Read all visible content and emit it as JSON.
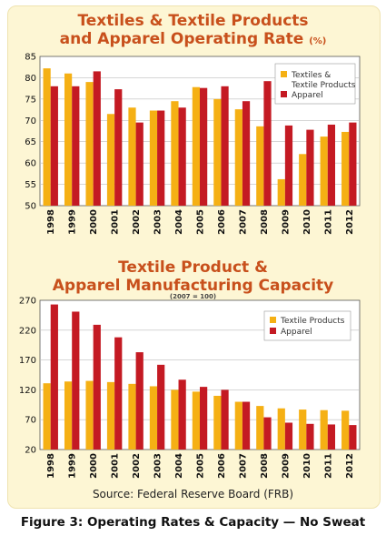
{
  "page": {
    "source": "Source: Federal Reserve Board (FRB)",
    "caption": "Figure 3: Operating Rates & Capacity — No Sweat"
  },
  "colors": {
    "textiles": "#f5b014",
    "apparel": "#c41a23",
    "title": "#c8501c",
    "panel": "#fdf6d4"
  },
  "chart_data": [
    {
      "type": "bar",
      "title_line1": "Textiles & Textile Products",
      "title_line2": "and Apparel Operating Rate",
      "title_unit": "(%)",
      "categories": [
        "1998",
        "1999",
        "2000",
        "2001",
        "2002",
        "2003",
        "2004",
        "2005",
        "2006",
        "2007",
        "2008",
        "2009",
        "2010",
        "2011",
        "2012"
      ],
      "series": [
        {
          "name": "Textiles & Textile Products",
          "values": [
            82.2,
            81.0,
            79.0,
            71.5,
            73.0,
            72.3,
            74.5,
            77.8,
            75.0,
            72.6,
            68.6,
            56.2,
            62.1,
            66.2,
            67.3
          ]
        },
        {
          "name": "Apparel",
          "values": [
            78.0,
            78.0,
            81.5,
            77.3,
            69.5,
            72.3,
            73.0,
            77.6,
            78.0,
            74.5,
            79.2,
            68.8,
            67.8,
            69.0,
            69.5
          ]
        }
      ],
      "ylim": [
        50,
        85
      ],
      "yticks": [
        50,
        55,
        60,
        65,
        70,
        75,
        80,
        85
      ],
      "legend": {
        "placement": "top-right",
        "labels": [
          "Textiles &",
          "Textile Products",
          "Apparel"
        ]
      },
      "grid": true
    },
    {
      "type": "bar",
      "title_line1": "Textile Product &",
      "title_line2": "Apparel Manufacturing Capacity",
      "subtitle": "(2007 = 100)",
      "categories": [
        "1998",
        "1999",
        "2000",
        "2001",
        "2002",
        "2003",
        "2004",
        "2005",
        "2006",
        "2007",
        "2008",
        "2009",
        "2010",
        "2011",
        "2012"
      ],
      "series": [
        {
          "name": "Textile Products",
          "values": [
            131,
            134,
            135,
            133,
            130,
            126,
            120,
            117,
            110,
            100,
            93,
            89,
            87,
            86,
            85
          ]
        },
        {
          "name": "Apparel",
          "values": [
            263,
            251,
            229,
            208,
            183,
            162,
            137,
            125,
            120,
            100,
            74,
            65,
            63,
            62,
            61
          ]
        }
      ],
      "ylim": [
        20,
        270
      ],
      "yticks": [
        20,
        70,
        120,
        170,
        220,
        270
      ],
      "legend": {
        "placement": "top-right",
        "labels": [
          "Textile Products",
          "Apparel"
        ]
      },
      "grid": true
    }
  ]
}
